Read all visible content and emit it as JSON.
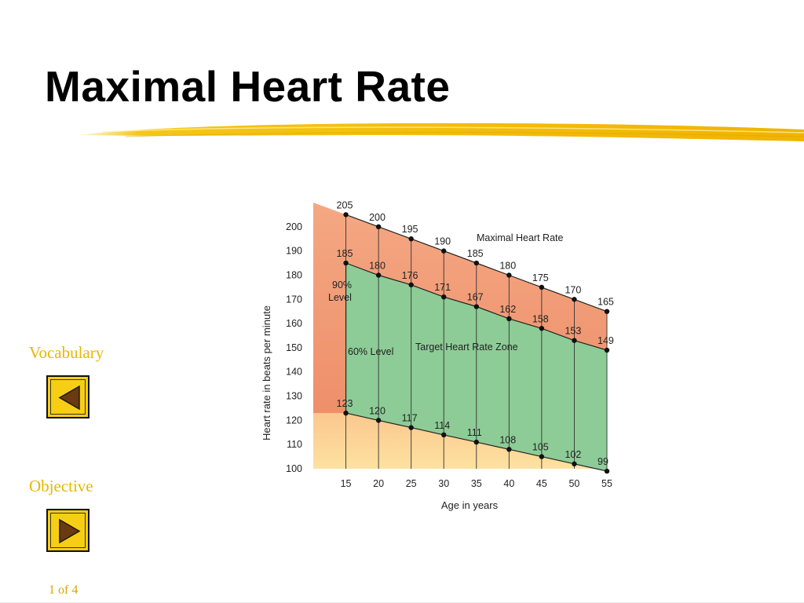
{
  "slide": {
    "title": "Maximal Heart Rate",
    "page_indicator": "1 of 4"
  },
  "nav": {
    "prev_label": "Vocabulary",
    "next_label": "Objective",
    "button_color": "#f7ce14",
    "link_color": "#e5b800"
  },
  "chart_data": {
    "type": "area",
    "xlabel": "Age in years",
    "ylabel": "Heart rate in beats per minute",
    "x": [
      15,
      20,
      25,
      30,
      35,
      40,
      45,
      50,
      55
    ],
    "xlim": [
      10,
      55
    ],
    "ylim": [
      100,
      210
    ],
    "yticks": [
      100,
      110,
      120,
      130,
      140,
      150,
      160,
      170,
      180,
      190,
      200
    ],
    "series": [
      {
        "name": "Maximal Heart Rate",
        "values": [
          205,
          200,
          195,
          190,
          185,
          180,
          175,
          170,
          165
        ],
        "color": "#f0a07a"
      },
      {
        "name": "90% Level",
        "values": [
          185,
          180,
          176,
          171,
          167,
          162,
          158,
          153,
          149
        ],
        "color": "#8dcc96"
      },
      {
        "name": "60% Level",
        "values": [
          123,
          120,
          117,
          114,
          111,
          108,
          105,
          102,
          99
        ],
        "color": "#fbc98a"
      }
    ],
    "annotations": {
      "max_label": "Maximal Heart Rate",
      "level90_line1": "90%",
      "level90_line2": "Level",
      "level60": "60% Level",
      "zone": "Target Heart Rate Zone"
    },
    "grid": false,
    "legend": "none"
  }
}
